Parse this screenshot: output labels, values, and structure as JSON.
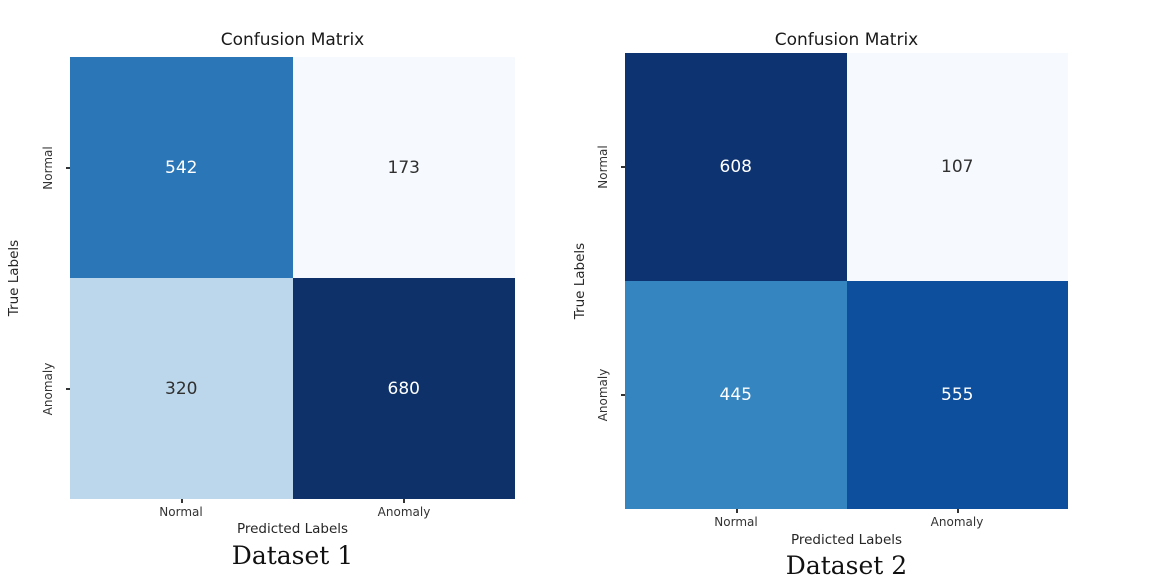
{
  "figures": [
    {
      "title": "Confusion Matrix",
      "xlabel": "Predicted Labels",
      "ylabel": "True Labels",
      "caption": "Dataset 1",
      "x_ticks": [
        "Normal",
        "Anomaly"
      ],
      "y_ticks": [
        "Normal",
        "Anomaly"
      ],
      "cells": [
        {
          "value": "542",
          "bg": "#2b76b7",
          "fg": "#ffffff"
        },
        {
          "value": "173",
          "bg": "#f6fafe",
          "fg": "#303030"
        },
        {
          "value": "320",
          "bg": "#bcd7eb",
          "fg": "#303030"
        },
        {
          "value": "680",
          "bg": "#0d3168",
          "fg": "#ffffff"
        }
      ]
    },
    {
      "title": "Confusion Matrix",
      "xlabel": "Predicted Labels",
      "ylabel": "True Labels",
      "caption": "Dataset 2",
      "x_ticks": [
        "Normal",
        "Anomaly"
      ],
      "y_ticks": [
        "Normal",
        "Anomaly"
      ],
      "cells": [
        {
          "value": "608",
          "bg": "#0d3370",
          "fg": "#ffffff"
        },
        {
          "value": "107",
          "bg": "#f6fafe",
          "fg": "#303030"
        },
        {
          "value": "445",
          "bg": "#3585c1",
          "fg": "#ffffff"
        },
        {
          "value": "555",
          "bg": "#0d4f9c",
          "fg": "#ffffff"
        }
      ]
    }
  ],
  "chart_data": [
    {
      "type": "heatmap",
      "title": "Confusion Matrix",
      "xlabel": "Predicted Labels",
      "ylabel": "True Labels",
      "x_categories": [
        "Normal",
        "Anomaly"
      ],
      "y_categories": [
        "Normal",
        "Anomaly"
      ],
      "values": [
        [
          542,
          173
        ],
        [
          320,
          680
        ]
      ],
      "caption": "Dataset 1",
      "colormap": "Blues",
      "annotated": true,
      "colorbar": false,
      "grid": false
    },
    {
      "type": "heatmap",
      "title": "Confusion Matrix",
      "xlabel": "Predicted Labels",
      "ylabel": "True Labels",
      "x_categories": [
        "Normal",
        "Anomaly"
      ],
      "y_categories": [
        "Normal",
        "Anomaly"
      ],
      "values": [
        [
          608,
          107
        ],
        [
          445,
          555
        ]
      ],
      "caption": "Dataset 2",
      "colormap": "Blues",
      "annotated": true,
      "colorbar": false,
      "grid": false
    }
  ]
}
